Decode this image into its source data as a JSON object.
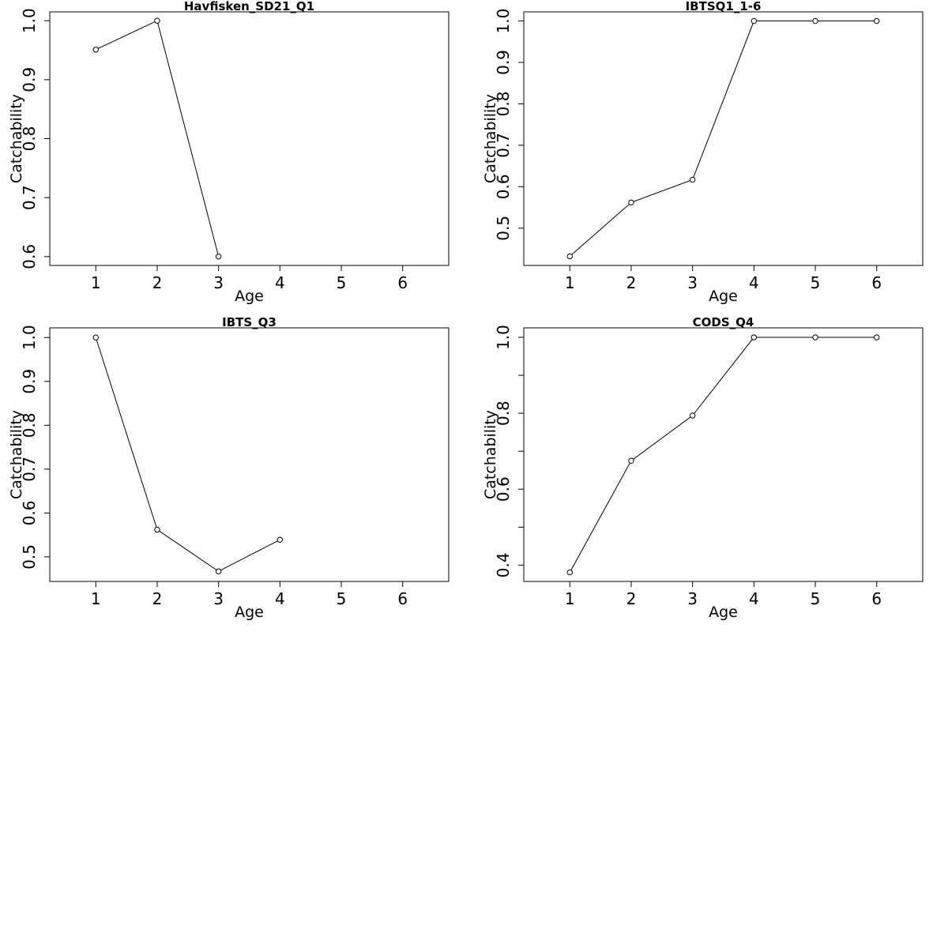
{
  "chart_data": [
    {
      "type": "line",
      "title": "Havfisken_SD21_Q1",
      "xlabel": "Age",
      "ylabel": "Catchability",
      "xlim": [
        0.25,
        6.75
      ],
      "ylim": [
        0.585,
        1.015
      ],
      "x_ticks": [
        1,
        2,
        3,
        4,
        5,
        6
      ],
      "y_ticks": [
        0.6,
        0.7,
        0.8,
        0.9,
        1.0
      ],
      "y_tick_labels": [
        "0.6",
        "0.7",
        "0.8",
        "0.9",
        "1.0"
      ],
      "x": [
        1,
        2,
        3
      ],
      "values": [
        0.951,
        1.0,
        0.6
      ]
    },
    {
      "type": "line",
      "title": "IBTSQ1_1-6",
      "xlabel": "Age",
      "ylabel": "Catchability",
      "xlim": [
        0.25,
        6.75
      ],
      "ylim": [
        0.41,
        1.022
      ],
      "x_ticks": [
        1,
        2,
        3,
        4,
        5,
        6
      ],
      "y_ticks": [
        0.5,
        0.6,
        0.7,
        0.8,
        0.9,
        1.0
      ],
      "y_tick_labels": [
        "0.5",
        "0.6",
        "0.7",
        "0.8",
        "0.9",
        "1.0"
      ],
      "x": [
        1,
        2,
        3,
        4,
        5,
        6
      ],
      "values": [
        0.432,
        0.562,
        0.617,
        1.0,
        1.0,
        1.0
      ]
    },
    {
      "type": "line",
      "title": "IBTS_Q3",
      "xlabel": "Age",
      "ylabel": "Catchability",
      "xlim": [
        0.25,
        6.75
      ],
      "ylim": [
        0.444,
        1.022
      ],
      "x_ticks": [
        1,
        2,
        3,
        4,
        5,
        6
      ],
      "y_ticks": [
        0.5,
        0.6,
        0.7,
        0.8,
        0.9,
        1.0
      ],
      "y_tick_labels": [
        "0.5",
        "0.6",
        "0.7",
        "0.8",
        "0.9",
        "1.0"
      ],
      "x": [
        1,
        2,
        3,
        4
      ],
      "values": [
        1.0,
        0.562,
        0.467,
        0.539
      ]
    },
    {
      "type": "line",
      "title": "CODS_Q4",
      "xlabel": "Age",
      "ylabel": "Catchability",
      "xlim": [
        0.25,
        6.75
      ],
      "ylim": [
        0.357,
        1.025
      ],
      "x_ticks": [
        1,
        2,
        3,
        4,
        5,
        6
      ],
      "y_ticks": [
        0.4,
        0.5,
        0.6,
        0.7,
        0.8,
        0.9,
        1.0
      ],
      "y_tick_labels": [
        "0.4",
        "",
        "0.6",
        "",
        "0.8",
        "",
        "1.0"
      ],
      "x": [
        1,
        2,
        3,
        4,
        5,
        6
      ],
      "values": [
        0.381,
        0.675,
        0.794,
        1.0,
        1.0,
        1.0
      ]
    }
  ]
}
